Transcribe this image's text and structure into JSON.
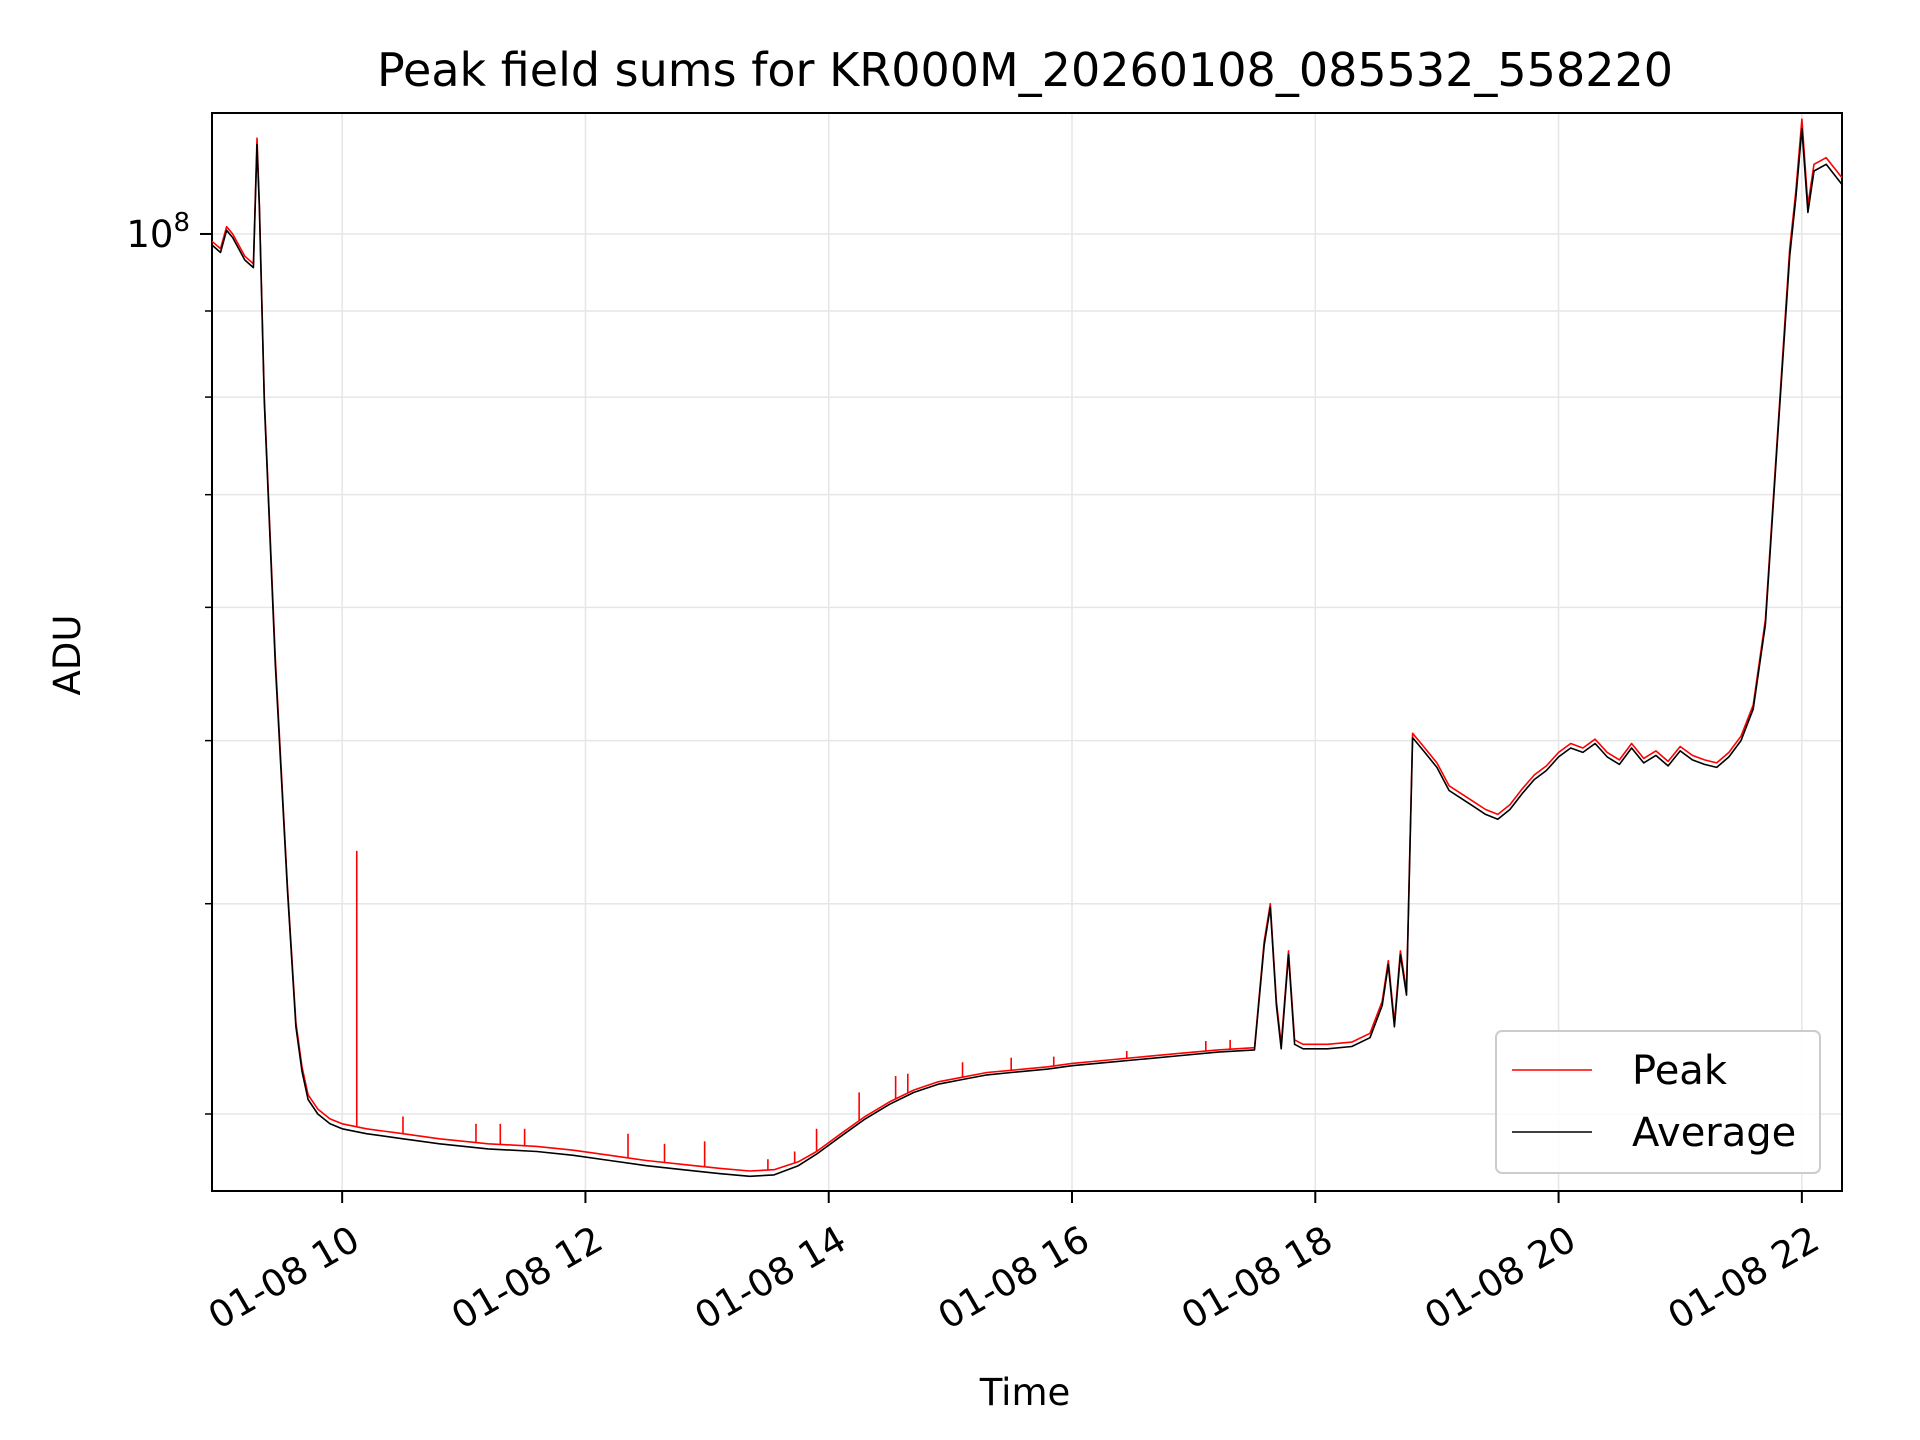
{
  "chart_data": {
    "type": "line",
    "title": "Peak field sums for KR000M_20260108_085532_558220",
    "xlabel": "Time",
    "ylabel": "ADU",
    "y_scale": "log",
    "xlim": [
      8.93,
      22.33
    ],
    "ylim": [
      27000000,
      118000000
    ],
    "x_unit": "hours on 01-08",
    "x_ticks": [
      {
        "value": 10,
        "label": "01-08 10"
      },
      {
        "value": 12,
        "label": "01-08 12"
      },
      {
        "value": 14,
        "label": "01-08 14"
      },
      {
        "value": 16,
        "label": "01-08 16"
      },
      {
        "value": 18,
        "label": "01-08 18"
      },
      {
        "value": 20,
        "label": "01-08 20"
      },
      {
        "value": 22,
        "label": "01-08 22"
      }
    ],
    "y_major_ticks": [
      {
        "value": 100000000,
        "base": "10",
        "exp": "8"
      }
    ],
    "y_minor_ticks": [
      30000000,
      40000000,
      50000000,
      60000000,
      70000000,
      80000000,
      90000000
    ],
    "grid": true,
    "legend_position": "bottom-right",
    "series": [
      {
        "name": "Peak",
        "color": "#ff0000",
        "x": [
          8.93,
          9.0,
          9.05,
          9.1,
          9.2,
          9.27,
          9.3,
          9.32,
          9.36,
          9.45,
          9.55,
          9.62,
          9.67,
          9.72,
          9.8,
          9.9,
          10.0,
          10.2,
          10.5,
          10.8,
          11.2,
          11.6,
          11.9,
          12.2,
          12.5,
          12.8,
          13.1,
          13.35,
          13.55,
          13.75,
          13.9,
          14.1,
          14.3,
          14.5,
          14.7,
          14.9,
          15.1,
          15.3,
          15.5,
          15.8,
          16.0,
          16.3,
          16.6,
          16.9,
          17.2,
          17.5,
          17.58,
          17.63,
          17.68,
          17.72,
          17.78,
          17.83,
          17.9,
          18.1,
          18.3,
          18.45,
          18.55,
          18.6,
          18.65,
          18.7,
          18.75,
          18.8,
          18.85,
          18.9,
          19.0,
          19.1,
          19.2,
          19.3,
          19.4,
          19.5,
          19.6,
          19.7,
          19.8,
          19.9,
          20.0,
          20.1,
          20.2,
          20.3,
          20.4,
          20.5,
          20.6,
          20.7,
          20.8,
          20.9,
          21.0,
          21.1,
          21.2,
          21.3,
          21.4,
          21.5,
          21.6,
          21.7,
          21.8,
          21.9,
          21.95,
          22.0,
          22.05,
          22.1,
          22.2,
          22.33
        ],
        "y": [
          99000000,
          98000000,
          101000000,
          100000000,
          97000000,
          96000000,
          114000000,
          104000000,
          80000000,
          56000000,
          41000000,
          34000000,
          32000000,
          30800000,
          30200000,
          29800000,
          29600000,
          29400000,
          29200000,
          29000000,
          28800000,
          28700000,
          28550000,
          28350000,
          28150000,
          28000000,
          27850000,
          27750000,
          27800000,
          28100000,
          28500000,
          29200000,
          29900000,
          30500000,
          31000000,
          31350000,
          31550000,
          31750000,
          31850000,
          32000000,
          32150000,
          32300000,
          32450000,
          32600000,
          32750000,
          32850000,
          38000000,
          40000000,
          35000000,
          33000000,
          37500000,
          33200000,
          33000000,
          33000000,
          33100000,
          33500000,
          35000000,
          37000000,
          34000000,
          37500000,
          35500000,
          50500000,
          50000000,
          49500000,
          48500000,
          47000000,
          46500000,
          46000000,
          45500000,
          45200000,
          45800000,
          46800000,
          47700000,
          48300000,
          49200000,
          49800000,
          49500000,
          50100000,
          49200000,
          48700000,
          49800000,
          48800000,
          49300000,
          48600000,
          49600000,
          49000000,
          48700000,
          48500000,
          49200000,
          50300000,
          52500000,
          59000000,
          76000000,
          98000000,
          106000000,
          117000000,
          104000000,
          110000000,
          111000000,
          108000000
        ],
        "spikes": [
          {
            "x": 10.12,
            "y": 43000000
          },
          {
            "x": 10.5,
            "y": 29900000
          },
          {
            "x": 11.1,
            "y": 29600000
          },
          {
            "x": 11.3,
            "y": 29600000
          },
          {
            "x": 11.5,
            "y": 29400000
          },
          {
            "x": 12.35,
            "y": 29200000
          },
          {
            "x": 12.65,
            "y": 28800000
          },
          {
            "x": 12.98,
            "y": 28900000
          },
          {
            "x": 13.5,
            "y": 28200000
          },
          {
            "x": 13.72,
            "y": 28500000
          },
          {
            "x": 13.9,
            "y": 29400000
          },
          {
            "x": 14.25,
            "y": 30900000
          },
          {
            "x": 14.55,
            "y": 31600000
          },
          {
            "x": 14.65,
            "y": 31700000
          },
          {
            "x": 15.1,
            "y": 32200000
          },
          {
            "x": 15.5,
            "y": 32400000
          },
          {
            "x": 15.85,
            "y": 32450000
          },
          {
            "x": 16.45,
            "y": 32700000
          },
          {
            "x": 17.1,
            "y": 33150000
          },
          {
            "x": 17.3,
            "y": 33200000
          }
        ]
      },
      {
        "name": "Average",
        "color": "#000000",
        "x": [
          8.93,
          9.0,
          9.05,
          9.1,
          9.2,
          9.27,
          9.3,
          9.32,
          9.36,
          9.45,
          9.55,
          9.62,
          9.67,
          9.72,
          9.8,
          9.9,
          10.0,
          10.2,
          10.5,
          10.8,
          11.2,
          11.6,
          11.9,
          12.2,
          12.5,
          12.8,
          13.1,
          13.35,
          13.55,
          13.75,
          13.9,
          14.1,
          14.3,
          14.5,
          14.7,
          14.9,
          15.1,
          15.3,
          15.5,
          15.8,
          16.0,
          16.3,
          16.6,
          16.9,
          17.2,
          17.5,
          17.58,
          17.63,
          17.68,
          17.72,
          17.78,
          17.83,
          17.9,
          18.1,
          18.3,
          18.45,
          18.55,
          18.6,
          18.65,
          18.7,
          18.75,
          18.8,
          18.85,
          18.9,
          19.0,
          19.1,
          19.2,
          19.3,
          19.4,
          19.5,
          19.6,
          19.7,
          19.8,
          19.9,
          20.0,
          20.1,
          20.2,
          20.3,
          20.4,
          20.5,
          20.6,
          20.7,
          20.8,
          20.9,
          21.0,
          21.1,
          21.2,
          21.3,
          21.4,
          21.5,
          21.6,
          21.7,
          21.8,
          21.9,
          21.95,
          22.0,
          22.05,
          22.1,
          22.2,
          22.33
        ],
        "y": [
          98500000,
          97500000,
          100500000,
          99500000,
          96500000,
          95500000,
          113000000,
          103500000,
          79500000,
          55500000,
          40800000,
          33800000,
          31800000,
          30600000,
          30000000,
          29600000,
          29400000,
          29200000,
          29000000,
          28800000,
          28600000,
          28500000,
          28350000,
          28150000,
          27950000,
          27800000,
          27650000,
          27550000,
          27600000,
          27950000,
          28400000,
          29100000,
          29800000,
          30400000,
          30900000,
          31250000,
          31450000,
          31650000,
          31750000,
          31900000,
          32050000,
          32200000,
          32350000,
          32500000,
          32650000,
          32750000,
          37800000,
          39800000,
          34800000,
          32800000,
          37300000,
          33000000,
          32800000,
          32800000,
          32900000,
          33300000,
          34800000,
          36800000,
          33800000,
          37300000,
          35300000,
          50200000,
          49700000,
          49200000,
          48200000,
          46700000,
          46200000,
          45700000,
          45200000,
          44900000,
          45500000,
          46500000,
          47400000,
          48000000,
          48900000,
          49500000,
          49200000,
          49800000,
          48900000,
          48400000,
          49500000,
          48500000,
          49000000,
          48300000,
          49300000,
          48700000,
          48400000,
          48200000,
          48900000,
          50000000,
          52200000,
          58600000,
          75500000,
          97000000,
          105000000,
          115500000,
          103000000,
          109000000,
          110000000,
          107000000
        ]
      }
    ]
  }
}
